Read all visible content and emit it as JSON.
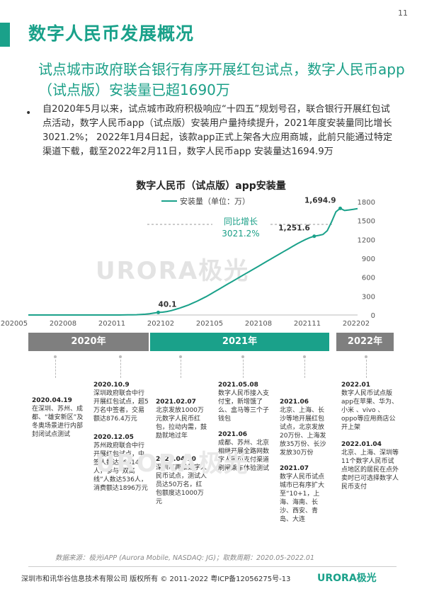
{
  "page_number": "11",
  "title": "数字人民币发展概况",
  "subtitle": "试点城市政府联合银行有序开展红包试点，数字人民币app （试点版）安装量已超1690万",
  "bullet": "自2020年5月以来，试点城市政府积极响应“十四五”规划号召，联合银行开展红包试点活动，数字人民币app（试点版）安装用户量持续提升，2021年度安装量同比增长3021.2%； 2022年1月4日起，该款app正式上架各大应用商城，此前只能通过特定渠道下载，截至2022年2月11日，数字人民币app 安装量达1694.9万",
  "chart_data": {
    "type": "line",
    "title": "数字人民币（试点版）app安装量",
    "legend": "安装量（单位：万）",
    "legend_position": "top-left",
    "x_tick_labels": [
      "202005",
      "202008",
      "202011",
      "202102",
      "202105",
      "202108",
      "202111",
      "202202"
    ],
    "y_ticks": [
      0,
      300,
      600,
      900,
      1200,
      1500,
      1800
    ],
    "ylim": [
      0,
      1800
    ],
    "grid": false,
    "y_axis_position": "right",
    "series": [
      {
        "values": [
          0,
          0,
          0,
          0,
          0,
          0,
          0,
          0,
          0,
          0,
          0,
          0,
          0,
          0,
          0,
          0,
          0,
          0,
          0,
          0,
          0,
          0,
          1,
          2,
          3,
          5,
          8,
          12,
          20,
          30,
          40.1,
          45,
          55,
          70,
          90,
          110,
          135,
          160,
          190,
          220,
          255,
          290,
          330,
          370,
          410,
          450,
          490,
          530,
          570,
          610,
          650,
          690,
          730,
          770,
          810,
          850,
          890,
          930,
          970,
          1010,
          1050,
          1090,
          1130,
          1165,
          1200,
          1230,
          1251.6,
          1265,
          1280,
          1340,
          1480,
          1640,
          1694.9,
          1660,
          1670,
          1680,
          1690
        ]
      }
    ],
    "annotations": [
      {
        "label": "40.1",
        "value": 40.1
      },
      {
        "label": "1,251.6",
        "value": 1251.6
      },
      {
        "label": "1,694.9",
        "value": 1694.9
      }
    ],
    "growth_label_1": "同比增长",
    "growth_label_2": "3021.2%"
  },
  "periods": [
    "2020年",
    "2021年",
    "2022年"
  ],
  "watermark": "URORA极光",
  "events": [
    {
      "date": "2020.04.19",
      "text": "在深圳、苏州、成都、“雄安新区”及冬奥场景进行内部封闭试点测试"
    },
    {
      "date": "2020.10.9",
      "text": "深圳政府联合中行开展红包试点，超5万名中签者，交易额达876.4万元"
    },
    {
      "date": "2020.12.05",
      "text": "苏州政府联合中行开展红包试点，中签人数达96614人，参与“双离线”人数达536人，消费额达1896万元"
    },
    {
      "date": "2021.02.07",
      "text": "北京发放1000万元数字人民币红包，拉动内需，鼓励就地过年"
    },
    {
      "date": "2021.04.10",
      "text": "深圳市再推数字人民币试点，测试人员达50万名，红包额度达1000万元"
    },
    {
      "date": "2021.05.08",
      "text": "数字人民币接入支付宝，新增饿了么、盒马等三个子钱包"
    },
    {
      "date": "2021.06",
      "text": "成都、苏州、北京相继开展全路网数字人民币支付渠道刷闸乘车体验测试"
    },
    {
      "date": "2021.06",
      "text": "北京、上海、长沙等地开展红包试点，北京发放20万份、上海发放35万份、长沙发放30万份"
    },
    {
      "date": "2021.07",
      "text": "数字人民币试点城市已有序扩大至“10+1，上海、海南、长沙、西安、青岛、大连"
    },
    {
      "date": "2022.01",
      "text": "数字人民币试点版app在苹果、华为、小米 、vivo 、oppo等应用商店公开上架"
    },
    {
      "date": "2022.01.04",
      "text": "北京、上海、深圳等11个数字人民币试点地区的居民在点外卖时已可选择数字人民币支付"
    }
  ],
  "source": "数据来源：极光iAPP (Aurora Mobile, NASDAQ: JG)；取数周期：2020.05-2022.01",
  "footer": "深圳市和讯华谷信息技术有限公司 版权所有 © 2011-2022 粤ICP备12056275号-13",
  "footer_logo": "URORA极光",
  "colors": {
    "accent": "#1aa18a",
    "period_grey": "#7f7f7f",
    "line": "#1aa18a"
  }
}
